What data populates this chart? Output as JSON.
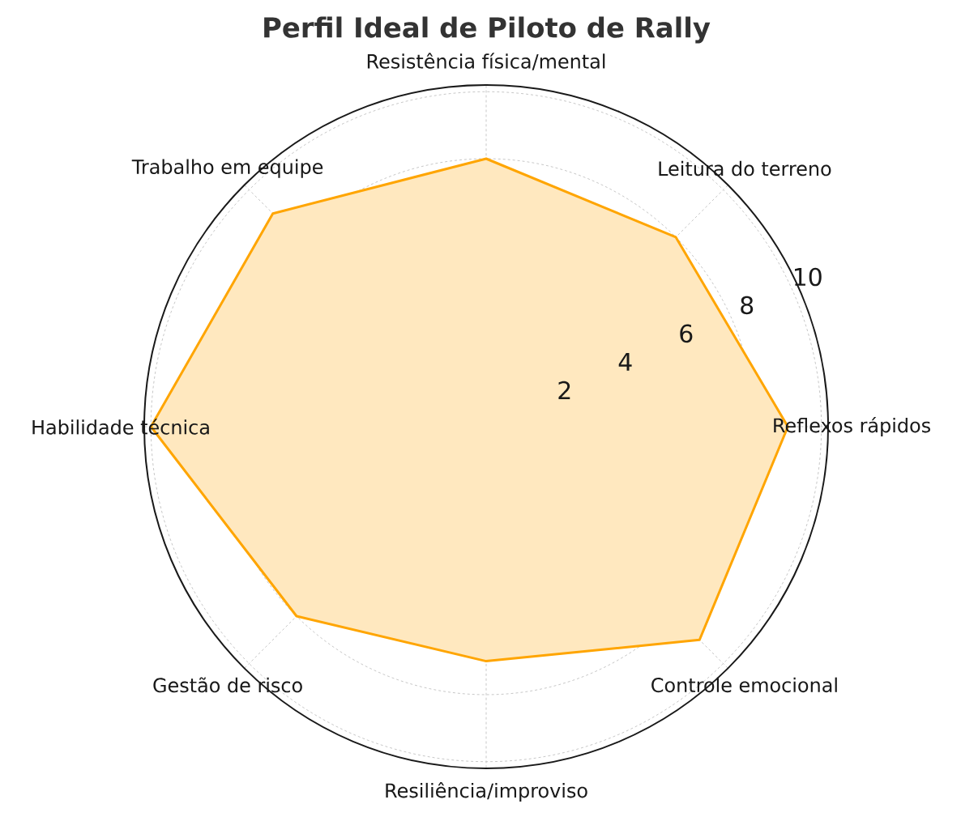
{
  "chart_data": {
    "type": "radar",
    "title": "Perfil Ideal de Piloto de Rally",
    "categories": [
      "Resistência física/mental",
      "Leitura do terreno",
      "Reflexos rápidos",
      "Controle emocional",
      "Resiliência/improviso",
      "Gestão de risco",
      "Habilidade técnica",
      "Trabalho em equipe"
    ],
    "series": [
      {
        "color": "#ffa500",
        "values": [
          8,
          8,
          9,
          9,
          7,
          8,
          10,
          9
        ]
      }
    ],
    "ylim": [
      0,
      10.2
    ],
    "yticks": [
      2,
      4,
      6,
      8,
      10
    ],
    "grid": true,
    "line_style": "solid",
    "marker": "none"
  }
}
